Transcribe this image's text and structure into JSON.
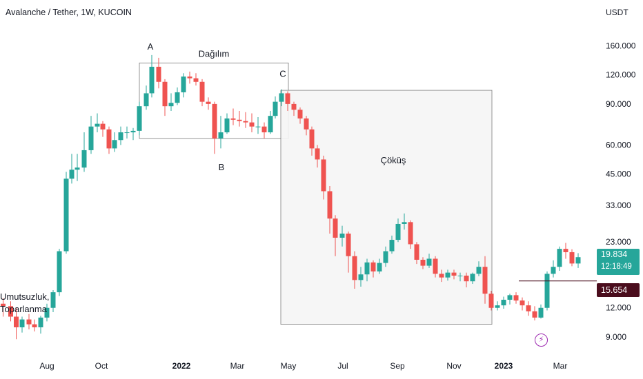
{
  "header": {
    "title": "Avalanche / Tether, 1W, KUCOIN",
    "unit": "USDT"
  },
  "colors": {
    "up": "#26a69a",
    "down": "#ef5350",
    "axis_text": "#131722",
    "box_border": "#7a7a7a",
    "box_fill": "#f5f5f5",
    "level_label": "#4a0d1d",
    "marker": "#9c27b0"
  },
  "price_labels": {
    "current_price": "19.834",
    "countdown": "12:18:49",
    "level": "15.654"
  },
  "annotations": {
    "point_a": "A",
    "point_b": "B",
    "point_c": "C",
    "distribution": "Dağılım",
    "collapse": "Çöküş",
    "recovery_line1": "Umutsuzluk,",
    "recovery_line2": "Toparlanma"
  },
  "chart_data": {
    "type": "candlestick",
    "title": "Avalanche / Tether, 1W, KUCOIN",
    "ylabel": "USDT",
    "y_scale": "log",
    "ylim": [
      7.8,
      205
    ],
    "y_ticks": [
      "160.000",
      "120.000",
      "90.000",
      "60.000",
      "45.000",
      "33.000",
      "23.000",
      "12.000",
      "9.000"
    ],
    "x_ticks": [
      {
        "label": "Aug",
        "bold": false
      },
      {
        "label": "Oct",
        "bold": false
      },
      {
        "label": "2022",
        "bold": true
      },
      {
        "label": "Mar",
        "bold": false
      },
      {
        "label": "May",
        "bold": false
      },
      {
        "label": "Jul",
        "bold": false
      },
      {
        "label": "Sep",
        "bold": false
      },
      {
        "label": "Nov",
        "bold": false
      },
      {
        "label": "2023",
        "bold": true
      },
      {
        "label": "Mar",
        "bold": false
      }
    ],
    "candles": [
      [
        12.5,
        12.2,
        13.2,
        11.0
      ],
      [
        12.2,
        11.0,
        12.8,
        10.5
      ],
      [
        11.0,
        9.9,
        12.0,
        8.8
      ],
      [
        9.9,
        10.7,
        11.0,
        9.4
      ],
      [
        10.7,
        10.2,
        11.3,
        9.7
      ],
      [
        10.2,
        9.9,
        10.7,
        9.5
      ],
      [
        9.9,
        10.9,
        11.1,
        9.3
      ],
      [
        10.9,
        12.0,
        12.5,
        10.5
      ],
      [
        12.0,
        14.0,
        14.3,
        11.5
      ],
      [
        14.0,
        21.0,
        21.5,
        13.5
      ],
      [
        21.0,
        43.0,
        46.0,
        20.5
      ],
      [
        43.0,
        47.0,
        55.0,
        41.0
      ],
      [
        47.0,
        48.0,
        55.0,
        42.0
      ],
      [
        48.0,
        57.0,
        68.0,
        46.0
      ],
      [
        57.0,
        72.0,
        80.0,
        55.0
      ],
      [
        72.0,
        74.0,
        82.0,
        68.0
      ],
      [
        74.0,
        70.0,
        76.0,
        65.0
      ],
      [
        70.0,
        58.0,
        72.0,
        55.0
      ],
      [
        58.0,
        63.0,
        68.0,
        56.0
      ],
      [
        63.0,
        68.0,
        72.0,
        60.0
      ],
      [
        68.0,
        68.0,
        72.0,
        64.0
      ],
      [
        68.0,
        69.0,
        71.0,
        63.0
      ],
      [
        69.0,
        88.0,
        92.0,
        66.0
      ],
      [
        88.0,
        100.0,
        108.0,
        85.0
      ],
      [
        100.0,
        130.0,
        146.0,
        96.0
      ],
      [
        130.0,
        112.0,
        142.0,
        105.0
      ],
      [
        112.0,
        88.0,
        115.0,
        80.0
      ],
      [
        88.0,
        91.0,
        100.0,
        84.0
      ],
      [
        91.0,
        101.0,
        106.0,
        89.0
      ],
      [
        101.0,
        118.0,
        122.0,
        96.0
      ],
      [
        118.0,
        116.0,
        124.0,
        110.0
      ],
      [
        116.0,
        112.0,
        122.0,
        108.0
      ],
      [
        112.0,
        92.0,
        115.0,
        88.0
      ],
      [
        92.0,
        90.0,
        96.0,
        85.0
      ],
      [
        90.0,
        64.0,
        92.0,
        55.0
      ],
      [
        64.0,
        68.0,
        80.0,
        58.0
      ],
      [
        68.0,
        78.0,
        82.0,
        67.0
      ],
      [
        78.0,
        77.0,
        86.0,
        73.0
      ],
      [
        77.0,
        76.0,
        84.0,
        72.0
      ],
      [
        76.0,
        75.0,
        83.0,
        71.0
      ],
      [
        75.0,
        72.0,
        82.0,
        68.0
      ],
      [
        72.0,
        72.0,
        79.0,
        67.0
      ],
      [
        72.0,
        68.0,
        75.0,
        64.0
      ],
      [
        68.0,
        80.0,
        84.0,
        67.0
      ],
      [
        80.0,
        92.0,
        97.0,
        78.0
      ],
      [
        92.0,
        100.0,
        104.0,
        88.0
      ],
      [
        100.0,
        90.0,
        102.0,
        84.0
      ],
      [
        90.0,
        85.0,
        92.0,
        80.0
      ],
      [
        85.0,
        78.0,
        87.0,
        74.0
      ],
      [
        78.0,
        70.0,
        80.0,
        66.0
      ],
      [
        70.0,
        58.0,
        72.0,
        54.0
      ],
      [
        58.0,
        52.0,
        60.0,
        48.0
      ],
      [
        52.0,
        38.0,
        54.0,
        35.0
      ],
      [
        38.0,
        29.0,
        40.0,
        25.0
      ],
      [
        29.0,
        24.0,
        30.0,
        20.0
      ],
      [
        24.0,
        25.0,
        27.0,
        22.0
      ],
      [
        25.0,
        20.0,
        25.5,
        17.0
      ],
      [
        20.0,
        15.8,
        21.0,
        14.5
      ],
      [
        15.8,
        16.7,
        18.0,
        14.8
      ],
      [
        16.7,
        18.8,
        19.5,
        15.6
      ],
      [
        18.8,
        17.2,
        19.2,
        16.2
      ],
      [
        17.2,
        18.7,
        19.5,
        16.8
      ],
      [
        18.7,
        21.0,
        22.0,
        18.0
      ],
      [
        21.0,
        23.5,
        24.5,
        20.5
      ],
      [
        23.5,
        27.5,
        29.0,
        23.0
      ],
      [
        27.5,
        28.0,
        30.5,
        26.0
      ],
      [
        28.0,
        22.5,
        28.5,
        21.5
      ],
      [
        22.5,
        19.3,
        23.0,
        18.5
      ],
      [
        19.3,
        18.2,
        19.8,
        17.6
      ],
      [
        18.2,
        19.5,
        20.5,
        17.8
      ],
      [
        19.5,
        16.8,
        20.0,
        16.2
      ],
      [
        16.8,
        16.2,
        17.5,
        15.5
      ],
      [
        16.2,
        17.0,
        17.5,
        15.7
      ],
      [
        17.0,
        16.5,
        17.5,
        15.9
      ],
      [
        16.5,
        16.5,
        17.0,
        15.6
      ],
      [
        16.5,
        15.6,
        17.0,
        14.7
      ],
      [
        15.6,
        16.8,
        17.0,
        15.2
      ],
      [
        16.8,
        18.0,
        19.0,
        16.4
      ],
      [
        18.0,
        13.8,
        20.0,
        12.5
      ],
      [
        13.8,
        12.0,
        14.2,
        11.7
      ],
      [
        12.0,
        12.3,
        12.8,
        11.7
      ],
      [
        12.3,
        13.0,
        13.4,
        11.9
      ],
      [
        13.0,
        13.6,
        13.8,
        12.4
      ],
      [
        13.6,
        12.9,
        14.0,
        12.5
      ],
      [
        12.9,
        12.3,
        13.3,
        11.7
      ],
      [
        12.3,
        11.6,
        12.8,
        11.1
      ],
      [
        11.6,
        10.9,
        12.2,
        10.6
      ],
      [
        10.9,
        12.0,
        12.4,
        10.8
      ],
      [
        12.0,
        16.8,
        17.2,
        11.7
      ],
      [
        16.8,
        18.0,
        19.2,
        16.2
      ],
      [
        18.0,
        21.5,
        22.0,
        17.3
      ],
      [
        21.5,
        20.8,
        22.8,
        19.5
      ],
      [
        20.8,
        18.6,
        21.4,
        18.1
      ],
      [
        18.6,
        19.8,
        20.6,
        17.8
      ]
    ],
    "x_positions": [
      4.5,
      15.5,
      23.5,
      32,
      42,
      50,
      59,
      68,
      77,
      86,
      96,
      104,
      112,
      122,
      132,
      141,
      149,
      158,
      166,
      175,
      184,
      193,
      202,
      212,
      220,
      230,
      239,
      248,
      257,
      266,
      275,
      284,
      293,
      302,
      311,
      320,
      329,
      338,
      347,
      356,
      365,
      374,
      383,
      392,
      399,
      408,
      417,
      426,
      435,
      444,
      452,
      460,
      469,
      478,
      486,
      496,
      505,
      514,
      523,
      532,
      541,
      550,
      559,
      568,
      577,
      586,
      595,
      604,
      613,
      622,
      631,
      640,
      649,
      658,
      667,
      676,
      685,
      694,
      703,
      712,
      721,
      730,
      739,
      748,
      757,
      766,
      775,
      784,
      793,
      802,
      811,
      820,
      829,
      838
    ],
    "annotation_points": {
      "A": {
        "date_index": 24
      },
      "B": {
        "date_index": 34
      },
      "C": {
        "date_index": 45
      }
    },
    "zones": [
      {
        "name": "distribution",
        "from_index": 23,
        "to_index": 45,
        "price_low": 64.0,
        "price_high": 135.0
      },
      {
        "name": "collapse",
        "from_index": 46,
        "to_index": 78,
        "price_low": 10.2,
        "price_high": 103.0
      },
      {
        "name": "recovery",
        "from_index": 79,
        "to_index": 94,
        "price_low": 9.3,
        "price_high": 14.3
      }
    ],
    "horizontal_level": 15.654,
    "current_price": 19.834
  }
}
